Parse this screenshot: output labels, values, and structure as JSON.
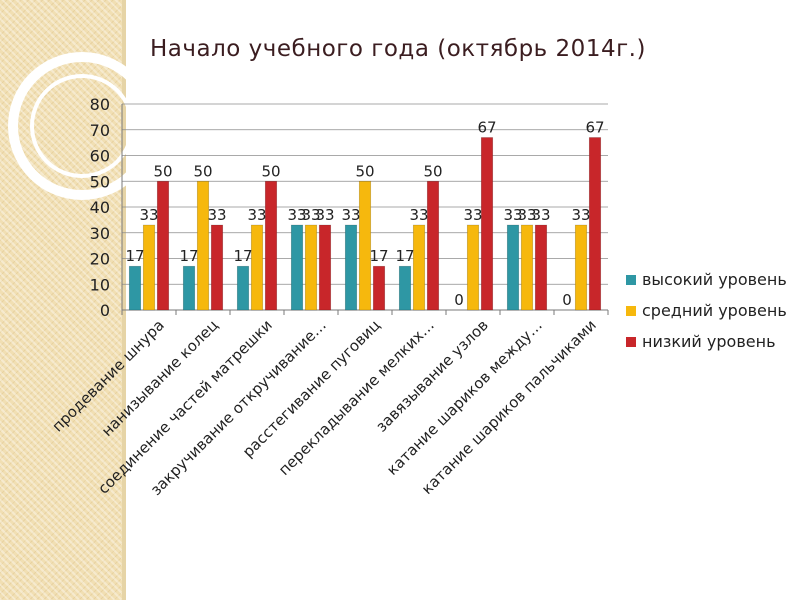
{
  "chart_data": {
    "type": "bar",
    "title": "Начало учебного года (октябрь 2014г.)",
    "xlabel": "",
    "ylabel": "",
    "ylim": [
      0,
      80
    ],
    "yticks": [
      0,
      10,
      20,
      30,
      40,
      50,
      60,
      70,
      80
    ],
    "grid": true,
    "legend_position": "right",
    "categories": [
      "продевание шнура",
      "нанизывание колец",
      "соединение частей матрешки",
      "закручивание откручивание…",
      "расстегивание пуговиц",
      "перекладывание мелких…",
      "завязывание узлов",
      "катание шариков между…",
      "катание шариков пальчиками"
    ],
    "series": [
      {
        "name": "высокий уровень",
        "color": "#2e97a4",
        "values": [
          17,
          17,
          17,
          33,
          33,
          17,
          0,
          33,
          0
        ]
      },
      {
        "name": "средний уровень",
        "color": "#f6b80d",
        "values": [
          33,
          50,
          33,
          33,
          50,
          33,
          33,
          33,
          33
        ]
      },
      {
        "name": "низкий уровень",
        "color": "#c8262a",
        "values": [
          50,
          33,
          50,
          33,
          17,
          50,
          67,
          33,
          67
        ]
      }
    ]
  }
}
